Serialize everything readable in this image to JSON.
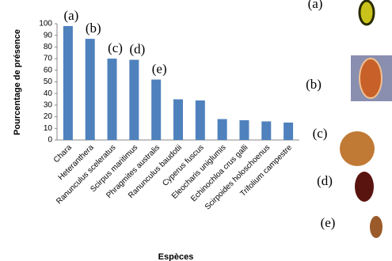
{
  "chart_data": {
    "type": "bar",
    "x_label": "Espèces",
    "y_label": "Pourcentage  de présence",
    "categories": [
      "Chara",
      "Heteranthera",
      "Ranunculus sceleratus",
      "Scirpus maritimus",
      "Phragmites australis",
      "Ranunculus baudotii",
      "Cyperus fuscus",
      "Eleocharis uniglumis",
      "Echinochloa crus galli",
      "Scirpoides holoschoenus",
      "Trifolium campestre"
    ],
    "values": [
      98,
      87,
      70,
      69,
      52,
      35,
      34,
      18,
      17,
      16,
      15
    ],
    "value_annotations": [
      "(a)",
      "(b)",
      "(c)",
      "(d)",
      "(e)",
      null,
      null,
      null,
      null,
      null,
      null
    ],
    "color": "#4f81bd",
    "ylim": [
      0,
      100
    ],
    "yticks": [
      0,
      10,
      20,
      30,
      40,
      50,
      60,
      70,
      80,
      90,
      100
    ],
    "grid": false
  },
  "figure_panel": {
    "labels": [
      "(a)",
      "(b)",
      "(c)",
      "(d)",
      "(e)"
    ]
  }
}
